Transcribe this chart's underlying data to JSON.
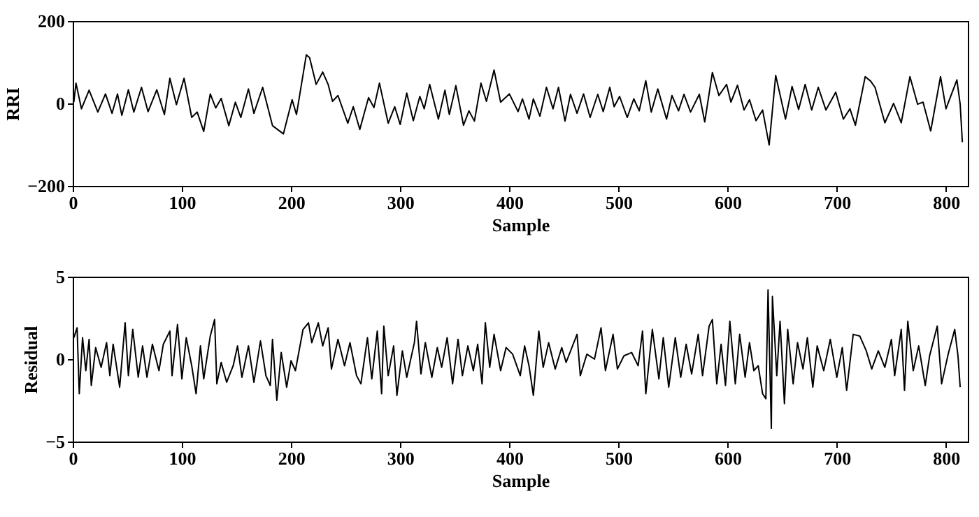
{
  "chart_data": [
    {
      "type": "line",
      "xlabel": "Sample",
      "ylabel": "RRI",
      "color": "#000000",
      "xlim": [
        0,
        820
      ],
      "ylim": [
        -200,
        200
      ],
      "xticks": [
        0,
        100,
        200,
        300,
        400,
        500,
        600,
        700,
        800
      ],
      "yticks": [
        -200,
        0,
        200
      ],
      "grid": false,
      "x": [
        1,
        3,
        8,
        15,
        23,
        30,
        36,
        41,
        45,
        51,
        56,
        63,
        69,
        77,
        84,
        89,
        95,
        102,
        109,
        114,
        120,
        126,
        131,
        136,
        143,
        149,
        154,
        161,
        166,
        174,
        183,
        193,
        201,
        205,
        214,
        217,
        223,
        229,
        234,
        238,
        243,
        252,
        257,
        263,
        271,
        276,
        281,
        289,
        295,
        300,
        306,
        312,
        318,
        322,
        327,
        335,
        341,
        345,
        351,
        358,
        363,
        368,
        374,
        379,
        386,
        392,
        400,
        408,
        412,
        418,
        422,
        428,
        434,
        440,
        445,
        451,
        456,
        462,
        468,
        474,
        481,
        486,
        492,
        496,
        501,
        508,
        514,
        519,
        525,
        530,
        536,
        544,
        549,
        555,
        560,
        566,
        574,
        579,
        586,
        592,
        599,
        603,
        609,
        615,
        620,
        626,
        632,
        638,
        644,
        653,
        659,
        665,
        671,
        677,
        683,
        690,
        699,
        706,
        712,
        717,
        726,
        731,
        735,
        744,
        752,
        759,
        767,
        774,
        779,
        786,
        795,
        800,
        810,
        813,
        815
      ],
      "values": [
        3,
        49,
        -13,
        32,
        -21,
        23,
        -24,
        23,
        -29,
        33,
        -21,
        39,
        -20,
        33,
        -27,
        61,
        -3,
        61,
        -34,
        -21,
        -68,
        23,
        -11,
        12,
        -54,
        3,
        -34,
        35,
        -24,
        39,
        -54,
        -74,
        9,
        -27,
        118,
        111,
        46,
        76,
        46,
        5,
        19,
        -48,
        -8,
        -63,
        14,
        -10,
        49,
        -48,
        -8,
        -51,
        25,
        -42,
        17,
        -13,
        46,
        -38,
        32,
        -27,
        43,
        -53,
        -18,
        -43,
        49,
        5,
        81,
        3,
        23,
        -20,
        11,
        -38,
        11,
        -31,
        39,
        -13,
        39,
        -43,
        22,
        -24,
        23,
        -34,
        22,
        -20,
        39,
        -8,
        17,
        -34,
        11,
        -18,
        55,
        -21,
        35,
        -38,
        19,
        -18,
        22,
        -21,
        22,
        -45,
        75,
        19,
        46,
        3,
        44,
        -16,
        9,
        -42,
        -16,
        -101,
        68,
        -38,
        41,
        -15,
        46,
        -16,
        39,
        -16,
        27,
        -38,
        -13,
        -53,
        65,
        54,
        39,
        -47,
        0,
        -47,
        65,
        -2,
        3,
        -67,
        65,
        -13,
        57,
        -2,
        -94
      ]
    },
    {
      "type": "line",
      "xlabel": "Sample",
      "ylabel": "Residual",
      "color": "#000000",
      "xlim": [
        0,
        820
      ],
      "ylim": [
        -5,
        5
      ],
      "xticks": [
        0,
        100,
        200,
        300,
        400,
        500,
        600,
        700,
        800
      ],
      "yticks": [
        -5,
        0,
        5
      ],
      "grid": false,
      "x": [
        1,
        4,
        6,
        9,
        12,
        15,
        17,
        21,
        26,
        31,
        34,
        37,
        43,
        48,
        51,
        55,
        60,
        64,
        68,
        73,
        79,
        83,
        89,
        91,
        96,
        100,
        104,
        109,
        113,
        117,
        120,
        126,
        130,
        132,
        136,
        141,
        147,
        151,
        155,
        161,
        166,
        172,
        177,
        181,
        183,
        187,
        191,
        196,
        200,
        204,
        211,
        216,
        219,
        225,
        229,
        234,
        237,
        243,
        249,
        254,
        260,
        264,
        270,
        274,
        279,
        283,
        285,
        289,
        294,
        297,
        302,
        306,
        313,
        315,
        319,
        323,
        329,
        334,
        338,
        343,
        348,
        353,
        357,
        362,
        367,
        371,
        375,
        378,
        382,
        386,
        392,
        397,
        403,
        410,
        414,
        418,
        422,
        427,
        431,
        436,
        442,
        448,
        452,
        462,
        465,
        471,
        478,
        484,
        488,
        495,
        499,
        505,
        512,
        518,
        522,
        525,
        531,
        537,
        541,
        546,
        552,
        557,
        562,
        567,
        573,
        577,
        583,
        586,
        590,
        594,
        598,
        602,
        607,
        611,
        616,
        620,
        624,
        628,
        632,
        635,
        637,
        640,
        641,
        645,
        648,
        652,
        655,
        660,
        664,
        669,
        673,
        678,
        682,
        688,
        694,
        700,
        705,
        709,
        715,
        721,
        727,
        732,
        738,
        744,
        750,
        753,
        759,
        762,
        765,
        770,
        775,
        781,
        785,
        792,
        796,
        802,
        808,
        811,
        813
      ],
      "values": [
        1.3,
        1.9,
        -2.1,
        1.3,
        -0.7,
        1.2,
        -1.6,
        0.7,
        -0.5,
        1.0,
        -1.0,
        0.9,
        -1.7,
        2.2,
        -1.0,
        1.8,
        -1.1,
        0.8,
        -1.1,
        0.9,
        -0.7,
        0.9,
        1.7,
        -1.0,
        2.1,
        -1.2,
        1.3,
        -0.4,
        -2.1,
        0.8,
        -1.2,
        1.4,
        2.4,
        -1.5,
        -0.2,
        -1.4,
        -0.4,
        0.8,
        -1.1,
        0.8,
        -1.4,
        1.1,
        -1.0,
        -1.6,
        1.2,
        -2.5,
        0.4,
        -1.7,
        -0.1,
        -0.7,
        1.8,
        2.2,
        1.0,
        2.2,
        0.8,
        1.9,
        -0.6,
        1.2,
        -0.4,
        1.0,
        -1.0,
        -1.5,
        1.3,
        -1.2,
        1.7,
        -2.1,
        2.0,
        -1.0,
        0.8,
        -2.2,
        0.5,
        -1.1,
        1.0,
        2.3,
        -0.9,
        1.0,
        -1.1,
        0.7,
        -0.5,
        1.3,
        -1.5,
        1.2,
        -1.0,
        0.8,
        -0.7,
        0.9,
        -1.5,
        2.2,
        -0.5,
        1.5,
        -0.7,
        0.7,
        0.3,
        -1.0,
        0.8,
        -0.4,
        -2.2,
        1.7,
        -0.5,
        1.0,
        -0.6,
        0.7,
        -0.2,
        1.5,
        -1.0,
        0.3,
        0.0,
        1.9,
        -0.7,
        1.5,
        -0.6,
        0.2,
        0.4,
        -0.4,
        1.7,
        -2.1,
        1.8,
        -1.2,
        1.3,
        -1.7,
        1.3,
        -1.1,
        0.9,
        -0.9,
        1.5,
        -1.0,
        2.0,
        2.4,
        -1.5,
        0.9,
        -1.6,
        2.3,
        -1.5,
        1.5,
        -1.1,
        1.0,
        -0.7,
        -0.4,
        -2.1,
        -2.4,
        4.2,
        -4.2,
        3.8,
        -1.0,
        2.3,
        -2.7,
        1.8,
        -1.5,
        1.0,
        -0.6,
        1.3,
        -1.7,
        0.8,
        -0.7,
        1.2,
        -1.1,
        0.7,
        -1.9,
        1.5,
        1.4,
        0.5,
        -0.6,
        0.5,
        -0.5,
        1.2,
        -1.0,
        1.8,
        -1.9,
        2.3,
        -0.7,
        0.8,
        -1.6,
        0.2,
        2.0,
        -1.5,
        0.3,
        1.8,
        0.2,
        -1.7
      ]
    }
  ]
}
